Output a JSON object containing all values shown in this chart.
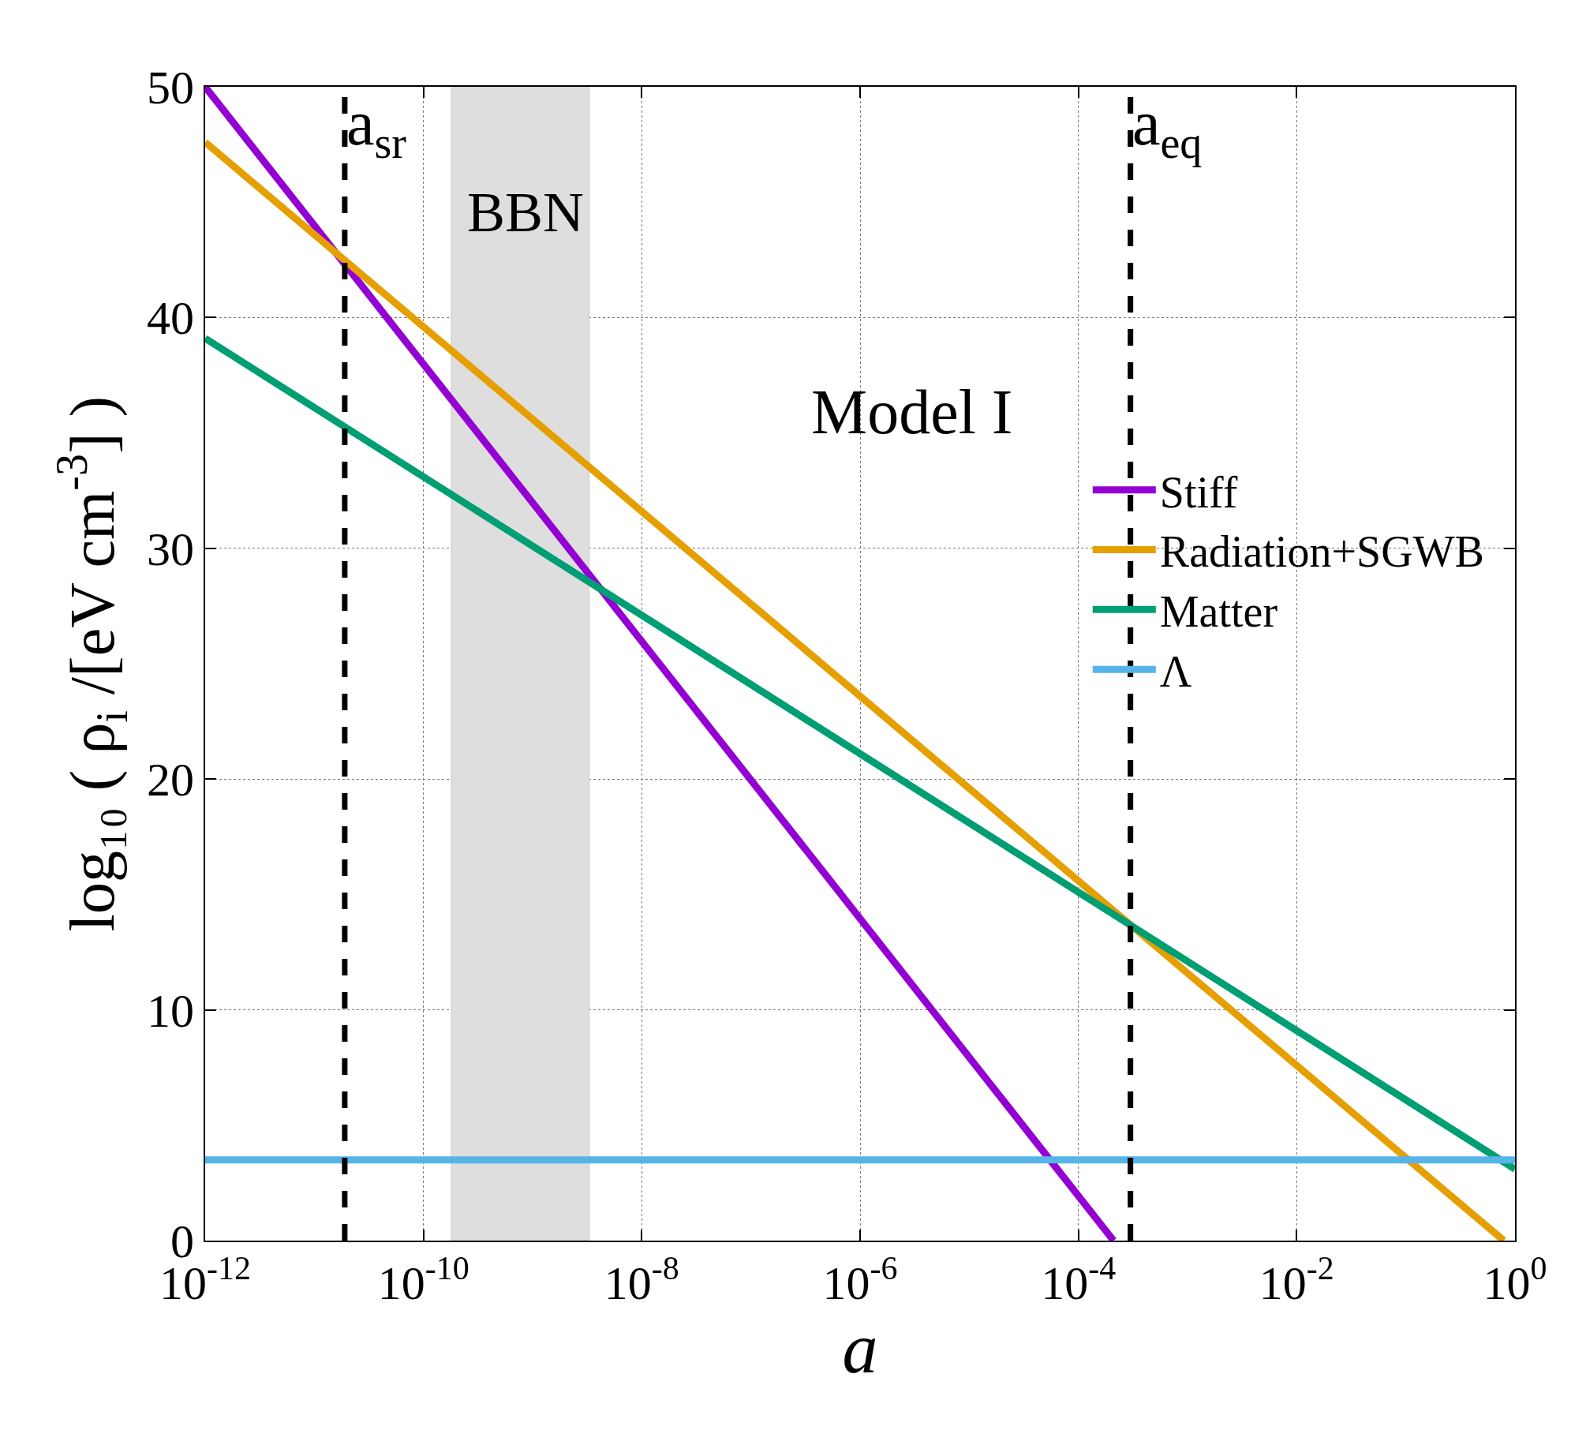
{
  "chart_data": {
    "type": "line",
    "xlabel": "a",
    "ylabel": "log₁₀ ( ρ$_{i}$ /[eV cm$^{-3}$] )",
    "log": "x",
    "grid": true,
    "legend": "right",
    "line_style": "solid",
    "marker": "none",
    "xlim": [
      1e-12,
      1
    ],
    "ylim": [
      0,
      50
    ],
    "xticks": [
      {
        "value": 1e-12,
        "label": "10$^{-12}$"
      },
      {
        "value": 1e-10,
        "label": "10$^{-10}$"
      },
      {
        "value": 1e-08,
        "label": "10$^{-8}$"
      },
      {
        "value": 1e-06,
        "label": "10$^{-6}$"
      },
      {
        "value": 0.0001,
        "label": "10$^{-4}$"
      },
      {
        "value": 0.01,
        "label": "10$^{-2}$"
      },
      {
        "value": 1,
        "label": "10$^{0}$"
      }
    ],
    "yticks": [
      0,
      10,
      20,
      30,
      40,
      50
    ],
    "series": [
      {
        "name": "Stiff",
        "color": "#9400d3",
        "x": [
          1e-12,
          0.00021
        ],
        "values": [
          50,
          0
        ]
      },
      {
        "name": "Radiation+SGWB",
        "color": "#e69f00",
        "x": [
          1e-12,
          0.79
        ],
        "values": [
          47.6,
          0
        ]
      },
      {
        "name": "Matter",
        "color": "#009e73",
        "x": [
          1e-12,
          1
        ],
        "values": [
          39.1,
          3.1
        ]
      },
      {
        "name": "Λ",
        "color": "#56b4e9",
        "x": [
          1e-12,
          1
        ],
        "values": [
          3.5,
          3.5
        ]
      }
    ],
    "ref_lines": [
      {
        "axis": "x",
        "value": 1.9e-11,
        "label": "a$_{sr}$",
        "color": "#000000",
        "line_style": "dashed"
      },
      {
        "axis": "x",
        "value": 0.0003,
        "label": "a$_{eq}$",
        "color": "#000000",
        "line_style": "dashed"
      }
    ],
    "bands": [
      {
        "axis": "x",
        "from": 1.8e-10,
        "to": 3.3e-09,
        "label": "BBN",
        "color": "#dedede"
      }
    ],
    "annotations": [
      "Model I"
    ]
  }
}
